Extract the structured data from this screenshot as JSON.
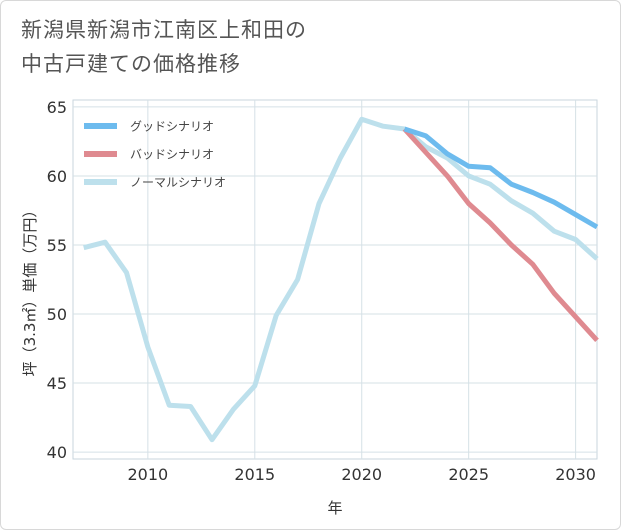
{
  "title_line1": "新潟県新潟市江南区上和田の",
  "title_line2": "中古戸建ての価格推移",
  "chart_data": {
    "type": "line",
    "title": "新潟県新潟市江南区上和田の中古戸建ての価格推移",
    "xlabel": "年",
    "ylabel": "坪（3.3㎡）単価（万円）",
    "xlim": [
      2006.5,
      2031
    ],
    "ylim": [
      39.5,
      65.5
    ],
    "x_ticks": [
      2010,
      2015,
      2020,
      2025,
      2030
    ],
    "y_ticks": [
      40,
      45,
      50,
      55,
      60,
      65
    ],
    "grid": true,
    "legend_position": "top-left",
    "series": [
      {
        "name": "グッドシナリオ",
        "color": "#6dbbee",
        "x": [
          2022,
          2023,
          2024,
          2025,
          2026,
          2027,
          2028,
          2029,
          2030,
          2031
        ],
        "values": [
          63.4,
          62.9,
          61.6,
          60.7,
          60.6,
          59.4,
          58.8,
          58.1,
          57.2,
          56.3
        ]
      },
      {
        "name": "バッドシナリオ",
        "color": "#df8a90",
        "x": [
          2022,
          2023,
          2024,
          2025,
          2026,
          2027,
          2028,
          2029,
          2030,
          2031
        ],
        "values": [
          63.4,
          61.7,
          60.0,
          58.0,
          56.6,
          55.0,
          53.6,
          51.5,
          49.8,
          48.1
        ]
      },
      {
        "name": "ノーマルシナリオ",
        "color": "#bde0ec",
        "x": [
          2007,
          2008,
          2009,
          2010,
          2011,
          2012,
          2013,
          2014,
          2015,
          2016,
          2017,
          2018,
          2019,
          2020,
          2021,
          2022,
          2023,
          2024,
          2025,
          2026,
          2027,
          2028,
          2029,
          2030,
          2031
        ],
        "values": [
          54.8,
          55.2,
          53.0,
          47.6,
          43.4,
          43.3,
          40.9,
          43.1,
          44.8,
          49.9,
          52.5,
          58.0,
          61.3,
          64.1,
          63.6,
          63.4,
          62.1,
          61.3,
          60.0,
          59.4,
          58.2,
          57.3,
          56.0,
          55.4,
          54.0
        ]
      }
    ]
  }
}
